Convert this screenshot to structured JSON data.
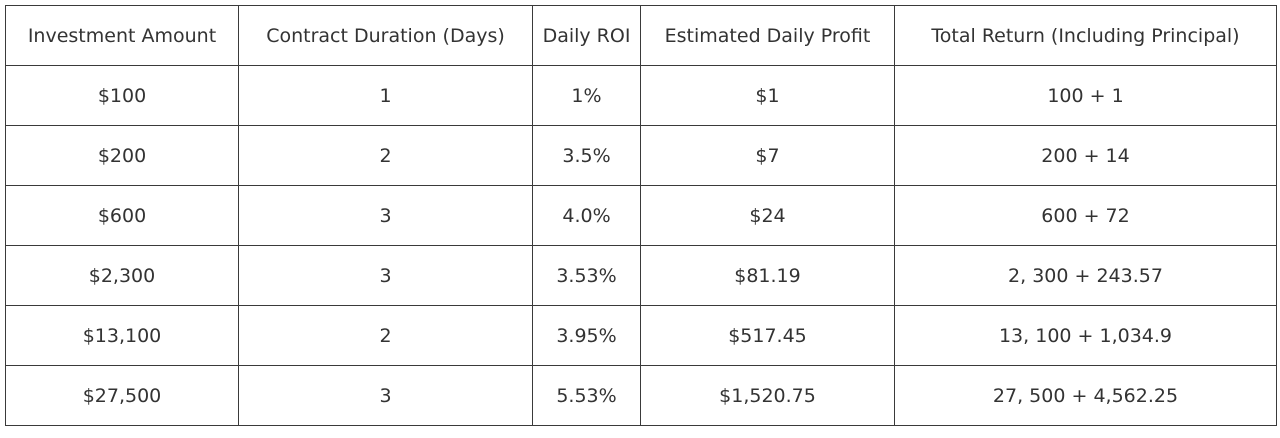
{
  "table": {
    "header": [
      "Investment Amount",
      "Contract Duration (Days)",
      "Daily ROI",
      "Estimated Daily Profit",
      "Total Return (Including Principal)"
    ],
    "rows": [
      [
        "$100",
        "1",
        "1%",
        "$1",
        "100 + 1"
      ],
      [
        "$200",
        "2",
        "3.5%",
        "$7",
        "200 + 14"
      ],
      [
        "$600",
        "3",
        "4.0%",
        "$24",
        "600 + 72"
      ],
      [
        "$2,300",
        "3",
        "3.53%",
        "$81.19",
        "2, 300 + 243.57"
      ],
      [
        "$13,100",
        "2",
        "3.95%",
        "$517.45",
        "13, 100 + 1,034.9"
      ],
      [
        "$27,500",
        "3",
        "5.53%",
        "$1,520.75",
        "27, 500 + 4,562.25"
      ]
    ]
  }
}
